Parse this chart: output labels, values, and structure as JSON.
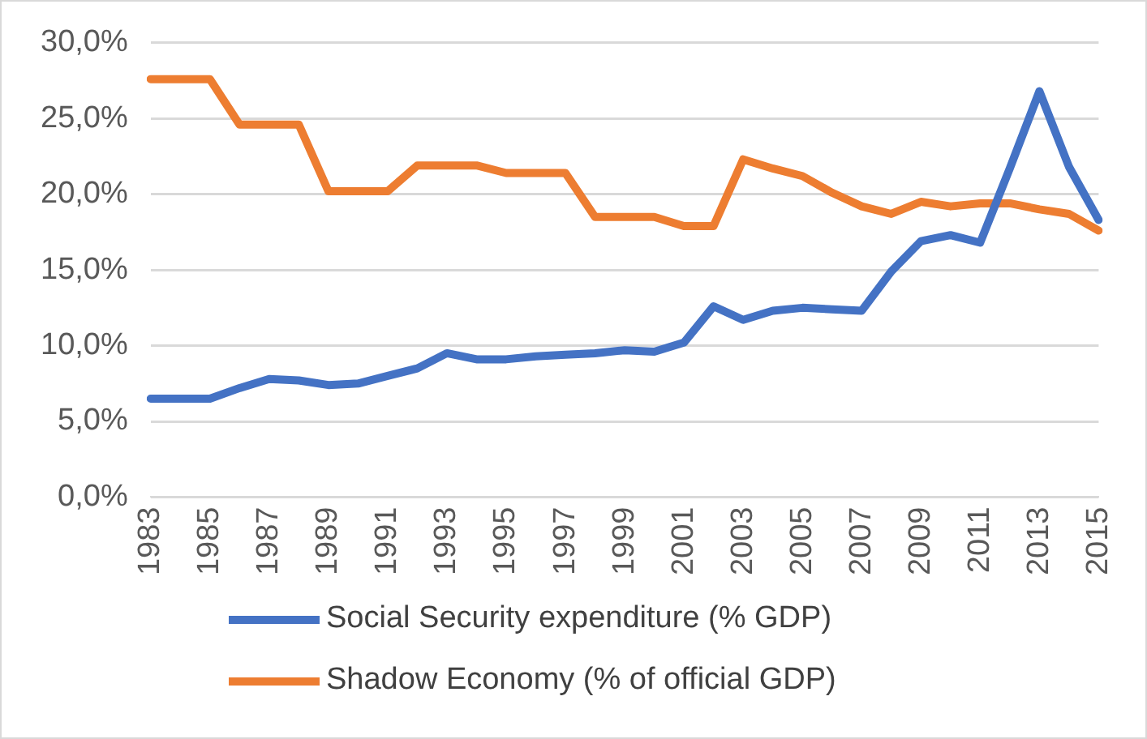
{
  "chart_data": {
    "type": "line",
    "categories": [
      "1983",
      null,
      "1985",
      null,
      "1987",
      null,
      "1989",
      null,
      "1991",
      null,
      "1993",
      null,
      "1995",
      null,
      "1997",
      null,
      "1999",
      null,
      "2001",
      null,
      "2003",
      null,
      "2005",
      null,
      "2007",
      null,
      "2009",
      null,
      "2011",
      null,
      "2013",
      null,
      "2015"
    ],
    "series": [
      {
        "name": "Social Security expenditure (% GDP)",
        "color": "#4472c4",
        "values": [
          6.5,
          6.5,
          6.5,
          7.2,
          7.8,
          7.7,
          7.4,
          7.5,
          8.0,
          8.5,
          9.5,
          9.1,
          9.1,
          9.3,
          9.4,
          9.5,
          9.7,
          9.6,
          10.2,
          12.6,
          11.7,
          12.3,
          12.5,
          12.4,
          12.3,
          14.9,
          16.9,
          17.3,
          16.8,
          21.7,
          26.8,
          21.8,
          18.3
        ]
      },
      {
        "name": "Shadow Economy (% of official GDP)",
        "color": "#ed7d31",
        "values": [
          27.6,
          27.6,
          27.6,
          24.6,
          24.6,
          24.6,
          20.2,
          20.2,
          20.2,
          21.9,
          21.9,
          21.9,
          21.4,
          21.4,
          21.4,
          18.5,
          18.5,
          18.5,
          17.9,
          17.9,
          22.3,
          21.7,
          21.2,
          20.1,
          19.2,
          18.7,
          19.5,
          19.2,
          19.4,
          19.4,
          19.0,
          18.7,
          17.6
        ]
      }
    ],
    "ylim": [
      0,
      30
    ],
    "yticks": [
      {
        "value": 0,
        "label": "0,0%"
      },
      {
        "value": 5,
        "label": "5,0%"
      },
      {
        "value": 10,
        "label": "10,0%"
      },
      {
        "value": 15,
        "label": "15,0%"
      },
      {
        "value": 20,
        "label": "20,0%"
      },
      {
        "value": 25,
        "label": "25,0%"
      },
      {
        "value": 30,
        "label": "30,0%"
      }
    ],
    "grid": "y",
    "legend": "bottom",
    "marker": "none",
    "line_style": "solid"
  }
}
